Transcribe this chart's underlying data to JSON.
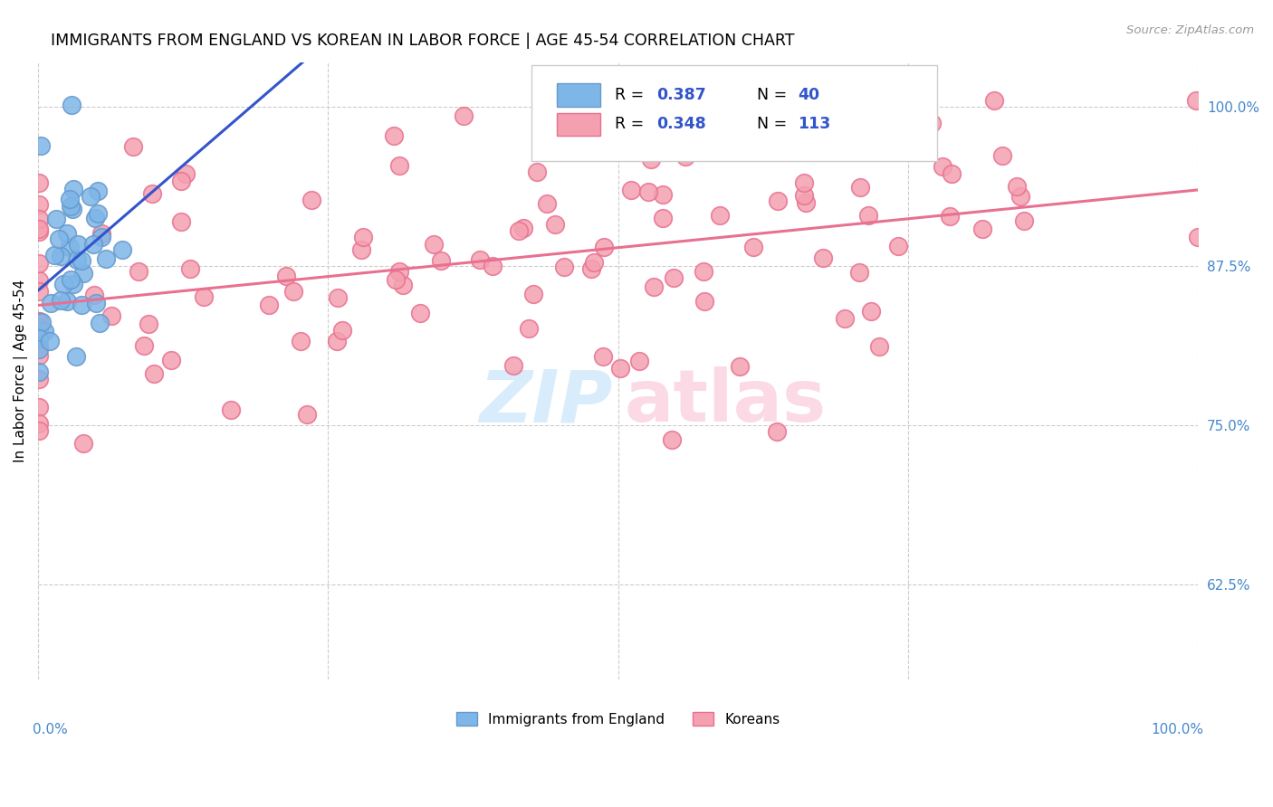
{
  "title": "IMMIGRANTS FROM ENGLAND VS KOREAN IN LABOR FORCE | AGE 45-54 CORRELATION CHART",
  "source": "Source: ZipAtlas.com",
  "ylabel": "In Labor Force | Age 45-54",
  "ytick_labels": [
    "62.5%",
    "75.0%",
    "87.5%",
    "100.0%"
  ],
  "ytick_values": [
    0.625,
    0.75,
    0.875,
    1.0
  ],
  "xlim": [
    0.0,
    1.0
  ],
  "ylim": [
    0.55,
    1.035
  ],
  "england_color": "#7EB6E8",
  "england_edge_color": "#6699CC",
  "korean_color": "#F4A0B0",
  "korean_edge_color": "#E87090",
  "england_line_color": "#3355CC",
  "korean_line_color": "#E87090",
  "england_R": "0.387",
  "england_N": "40",
  "korean_R": "0.348",
  "korean_N": "113",
  "legend_text_color": "#3355CC",
  "right_axis_color": "#4488CC"
}
